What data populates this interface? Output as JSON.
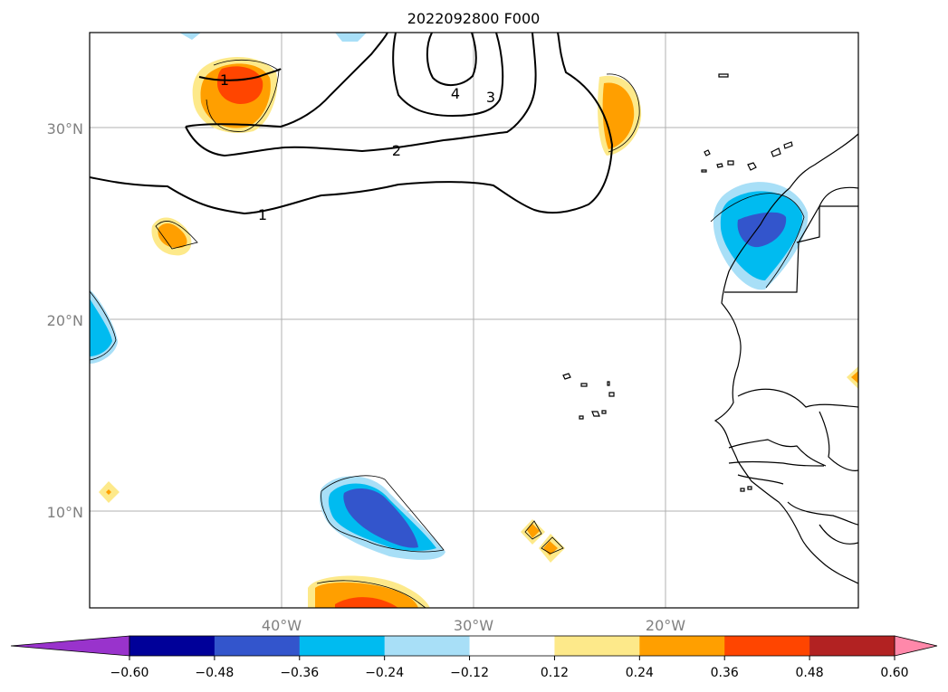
{
  "title": "2022092800 F000",
  "map": {
    "lat_labels": [
      "30°N",
      "20°N",
      "10°N"
    ],
    "lon_labels": [
      "40°W",
      "30°W",
      "20°W"
    ],
    "extent": {
      "lon": [
        -50,
        -10
      ],
      "lat": [
        5,
        35
      ]
    },
    "gridlines": true,
    "contour_labels": [
      "1",
      "1",
      "2",
      "3",
      "4"
    ]
  },
  "colorbar": {
    "ticks": [
      "−0.60",
      "−0.48",
      "−0.36",
      "−0.24",
      "−0.12",
      "0.12",
      "0.24",
      "0.36",
      "0.48",
      "0.60"
    ],
    "colors": [
      "#9933cc",
      "#000099",
      "#3355cc",
      "#00bbf0",
      "#a8dff7",
      "#ffffff",
      "#fde98a",
      "#ff9f00",
      "#ff4500",
      "#b22222",
      "#ff88aa"
    ],
    "extend": "both"
  }
}
